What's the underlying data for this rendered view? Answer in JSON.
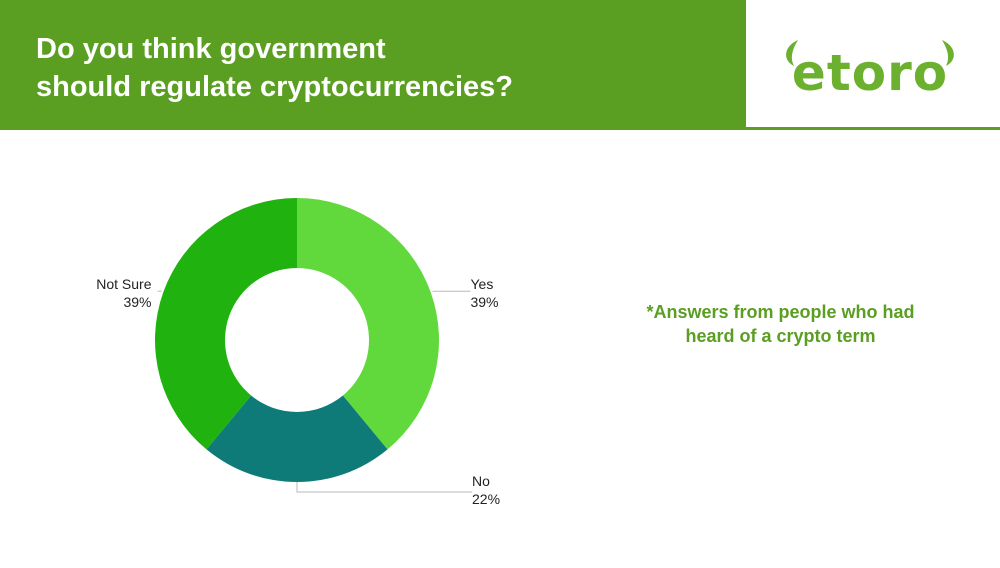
{
  "header": {
    "title_line1": "Do you think government",
    "title_line2": "should regulate cryptocurrencies?",
    "logo_text": "etoro"
  },
  "note": {
    "line1": "*Answers from people who had",
    "line2": "heard of a crypto term"
  },
  "colors": {
    "header_bg": "#5a9e22",
    "yes": "#61d93c",
    "no": "#0f7b78",
    "not_sure": "#20b20f",
    "note_text": "#5a9e22"
  },
  "chart_data": {
    "type": "pie",
    "donut": true,
    "title": "Do you think government should regulate cryptocurrencies?",
    "slices": [
      {
        "label": "Yes",
        "value": 39,
        "display": "39%",
        "color": "#61d93c"
      },
      {
        "label": "No",
        "value": 22,
        "display": "22%",
        "color": "#0f7b78"
      },
      {
        "label": "Not Sure",
        "value": 39,
        "display": "39%",
        "color": "#20b20f"
      }
    ]
  }
}
